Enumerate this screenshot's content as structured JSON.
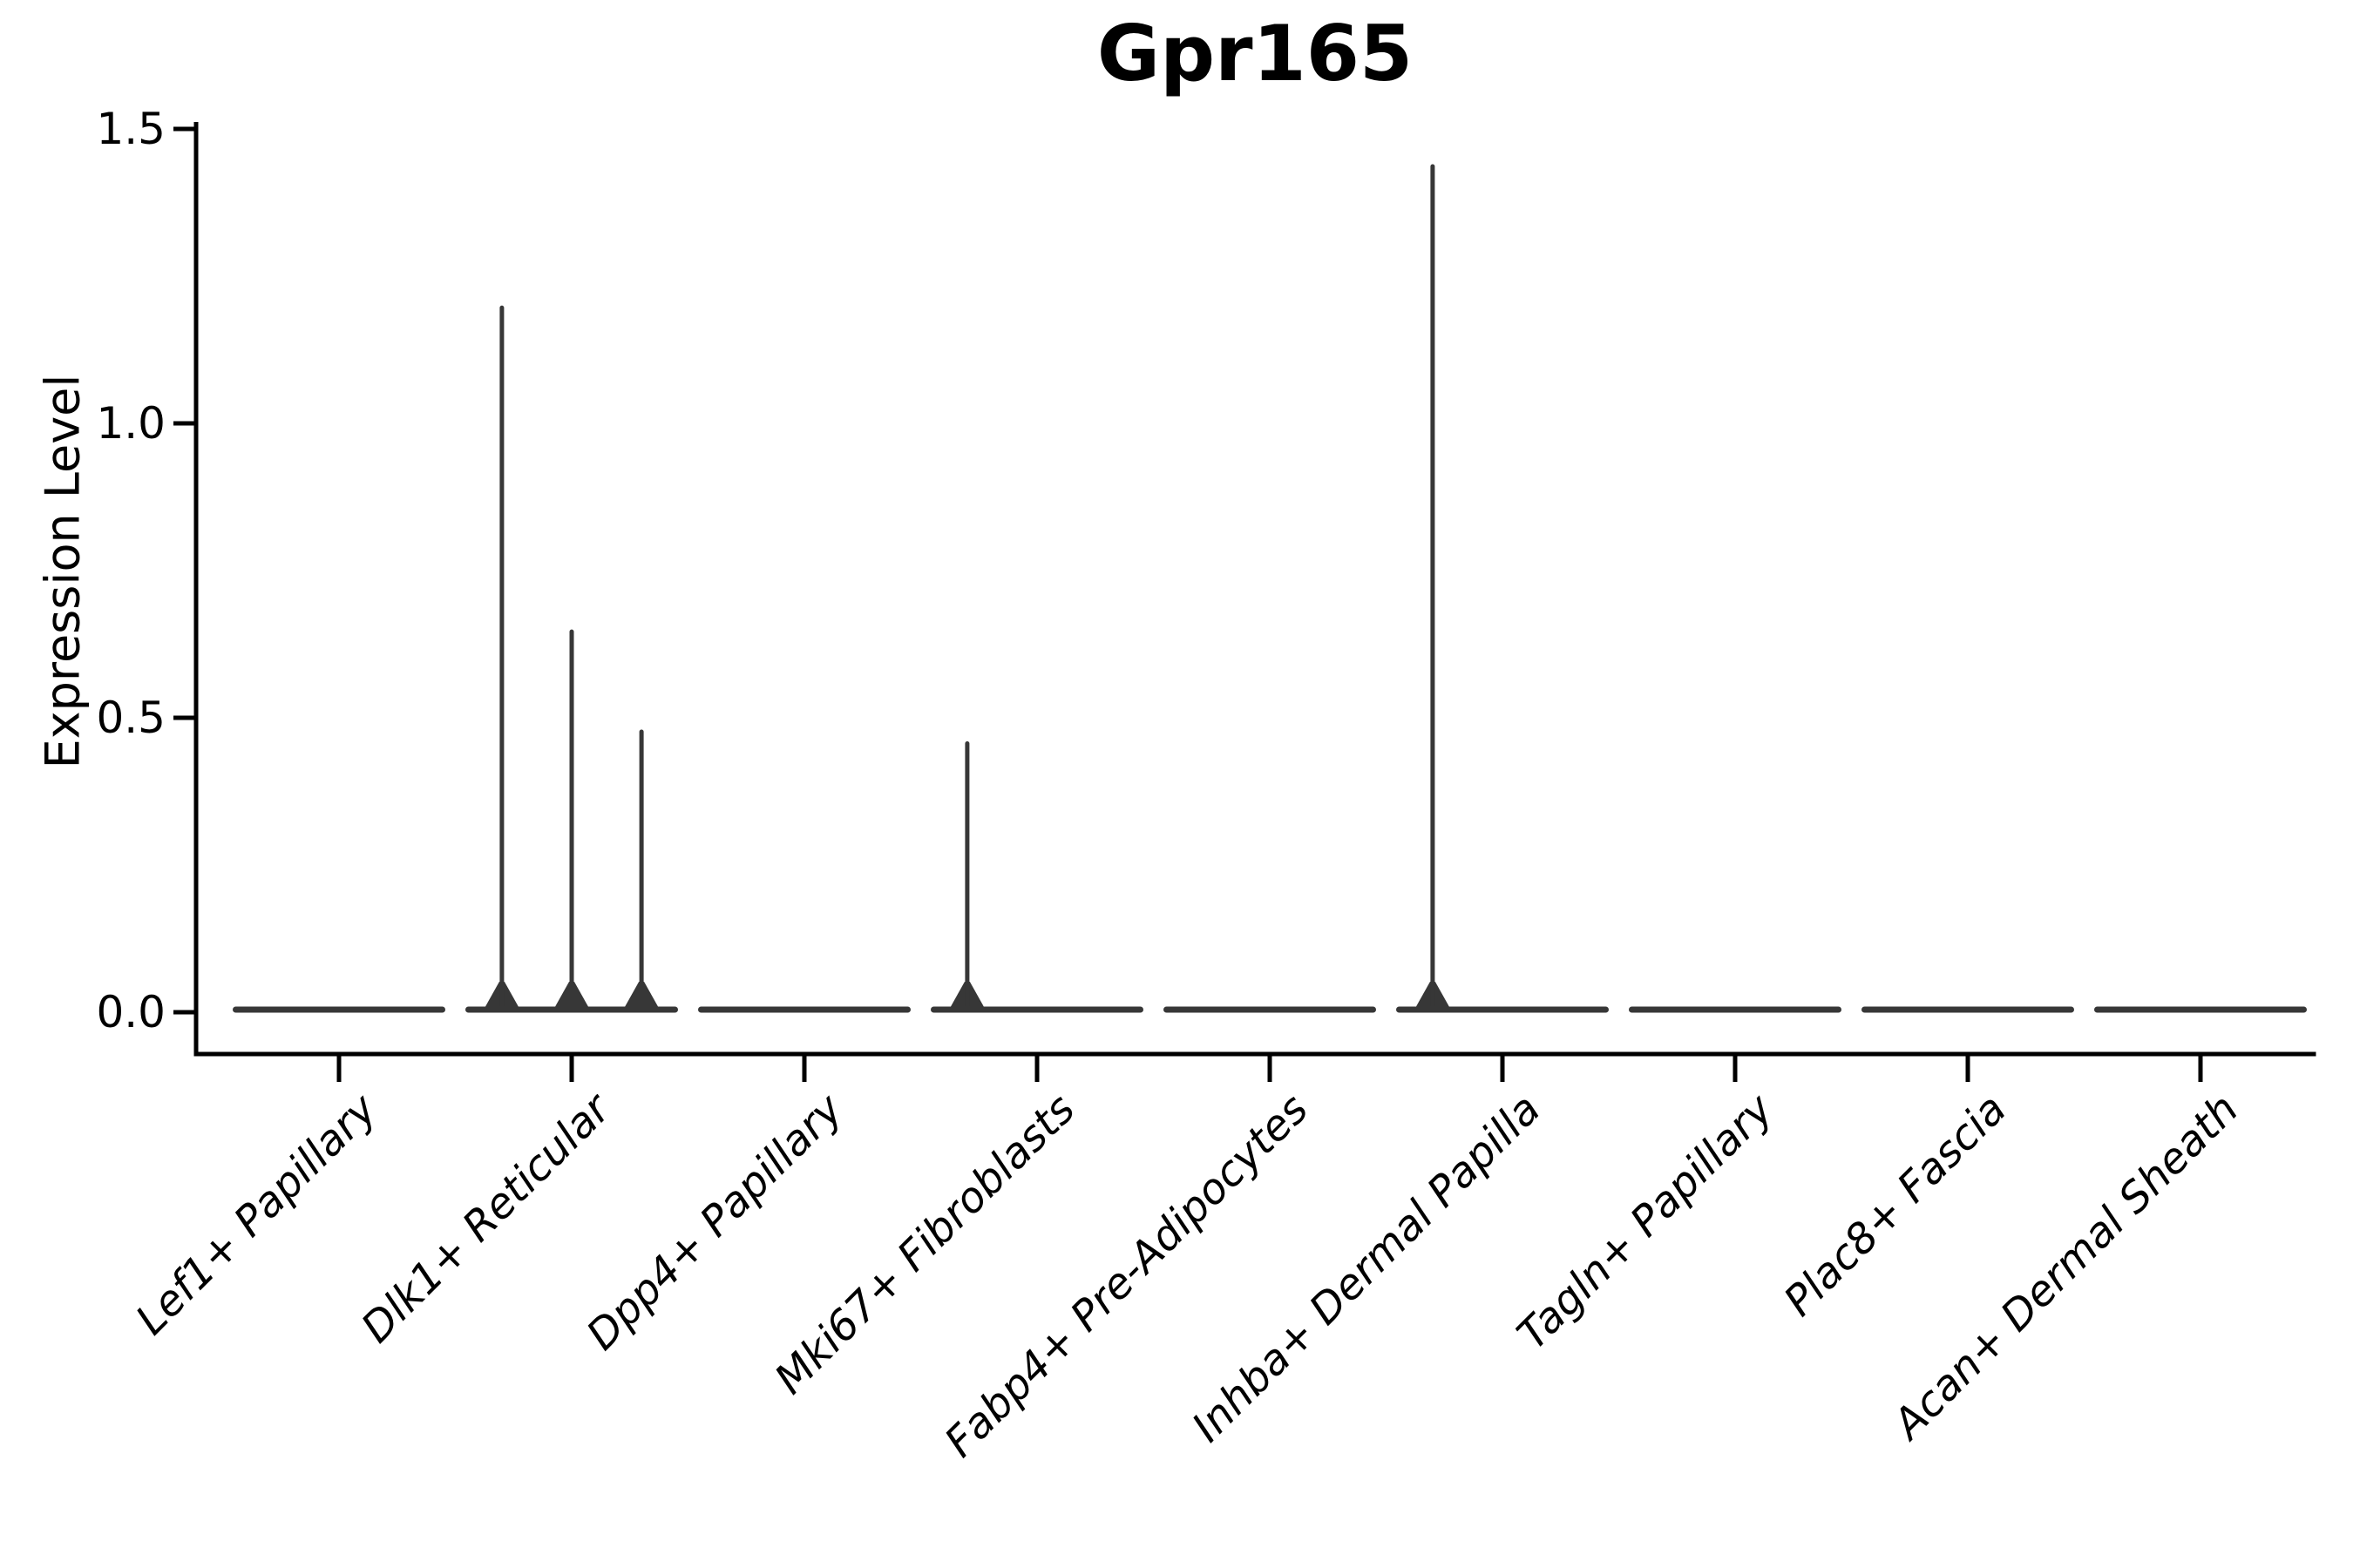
{
  "chart_data": {
    "type": "violin",
    "title": "Gpr165",
    "ylabel": "Expression Level",
    "xlabel": "",
    "ylim": [
      0,
      1.5
    ],
    "grid": false,
    "legend_position": "none",
    "violin_color": "#373737",
    "axis_color": "#000000",
    "yticks": [
      {
        "value": 0.0,
        "label": "0.0"
      },
      {
        "value": 0.5,
        "label": "0.5"
      },
      {
        "value": 1.0,
        "label": "1.0"
      },
      {
        "value": 1.5,
        "label": "1.5"
      }
    ],
    "categories": [
      "Lef1+ Papillary",
      "Dlk1+ Reticular",
      "Dpp4+ Papillary",
      "Mki67+ Fibroblasts",
      "Fabp4+ Pre-Adipocytes",
      "Inhba+ Dermal Papilla",
      "Tagln+ Papillary",
      "Plac8+ Fascia",
      "Acan+ Dermal Sheath"
    ],
    "violins": [
      {
        "category": "Lef1+ Papillary",
        "base_value": 0.0,
        "spikes": []
      },
      {
        "category": "Dlk1+ Reticular",
        "base_value": 0.0,
        "spikes": [
          {
            "value": 1.2,
            "offset": -0.3
          },
          {
            "value": 0.65,
            "offset": 0.0
          },
          {
            "value": 0.48,
            "offset": 0.3
          }
        ]
      },
      {
        "category": "Dpp4+ Papillary",
        "base_value": 0.0,
        "spikes": []
      },
      {
        "category": "Mki67+ Fibroblasts",
        "base_value": 0.0,
        "spikes": [
          {
            "value": 0.46,
            "offset": -0.3
          }
        ]
      },
      {
        "category": "Fabp4+ Pre-Adipocytes",
        "base_value": 0.0,
        "spikes": []
      },
      {
        "category": "Inhba+ Dermal Papilla",
        "base_value": 0.0,
        "spikes": [
          {
            "value": 1.44,
            "offset": -0.3
          }
        ]
      },
      {
        "category": "Tagln+ Papillary",
        "base_value": 0.0,
        "spikes": []
      },
      {
        "category": "Plac8+ Fascia",
        "base_value": 0.0,
        "spikes": []
      },
      {
        "category": "Acan+ Dermal Sheath",
        "base_value": 0.0,
        "spikes": []
      }
    ]
  }
}
